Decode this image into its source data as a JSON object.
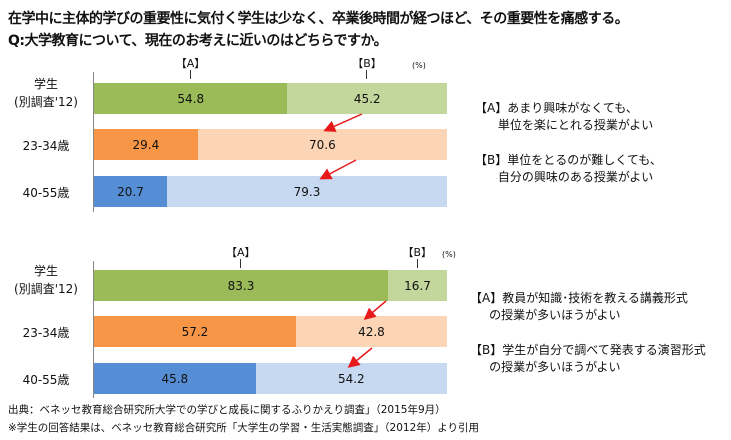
{
  "title_line1": "在学中に主体的学びの重要性に気付く学生は少なく、卒業後時間が経つほど、その重要性を痛感する。",
  "title_line2": "Q:大学教育について、現在のお考えに近いのはどちらですか。",
  "colors": {
    "student_a": "#9bbb59",
    "student_b": "#c3d69b",
    "age23_a": "#f79646",
    "age23_b": "#fbd5b5",
    "age40_a": "#558ed5",
    "age40_b": "#c6d9f1",
    "arrow": "#e8191b"
  },
  "chart_data": [
    {
      "type": "bar",
      "orientation": "horizontal",
      "stacked": true,
      "unit": "(%)",
      "header_a": "【A】",
      "header_b": "【B】",
      "categories": [
        "学生\n(別調査'12)",
        "23-34歳",
        "40-55歳"
      ],
      "series": [
        {
          "name": "【A】",
          "values": [
            54.8,
            29.4,
            20.7
          ]
        },
        {
          "name": "【B】",
          "values": [
            45.2,
            70.6,
            79.3
          ]
        }
      ],
      "labels": {
        "a": [
          "54.8",
          "29.4",
          "20.7"
        ],
        "b": [
          "45.2",
          "70.6",
          "79.3"
        ]
      },
      "legend": {
        "a": "【A】あまり興味がなくても、\n      単位を楽にとれる授業がよい",
        "b": "【B】単位をとるのが難しくても、\n      自分の興味のある授業がよい"
      }
    },
    {
      "type": "bar",
      "orientation": "horizontal",
      "stacked": true,
      "unit": "(%)",
      "header_a": "【A】",
      "header_b": "【B】",
      "categories": [
        "学生\n(別調査'12)",
        "23-34歳",
        "40-55歳"
      ],
      "series": [
        {
          "name": "【A】",
          "values": [
            83.3,
            57.2,
            45.8
          ]
        },
        {
          "name": "【B】",
          "values": [
            16.7,
            42.8,
            54.2
          ]
        }
      ],
      "labels": {
        "a": [
          "83.3",
          "57.2",
          "45.8"
        ],
        "b": [
          "16.7",
          "42.8",
          "54.2"
        ]
      },
      "legend": {
        "a": "【A】教員が知識･技術を教える講義形式\n     の授業が多いほうがよい",
        "b": "【B】学生が自分で調べて発表する演習形式\n     の授業が多いほうがよい"
      }
    }
  ],
  "source_line1": "出典：ベネッセ教育総合研究所大学での学びと成長に関するふりかえり調査」（2015年9月）",
  "source_line2": "※学生の回答結果は、ベネッセ教育総合研究所「大学生の学習・生活実態調査」（2012年）より引用"
}
